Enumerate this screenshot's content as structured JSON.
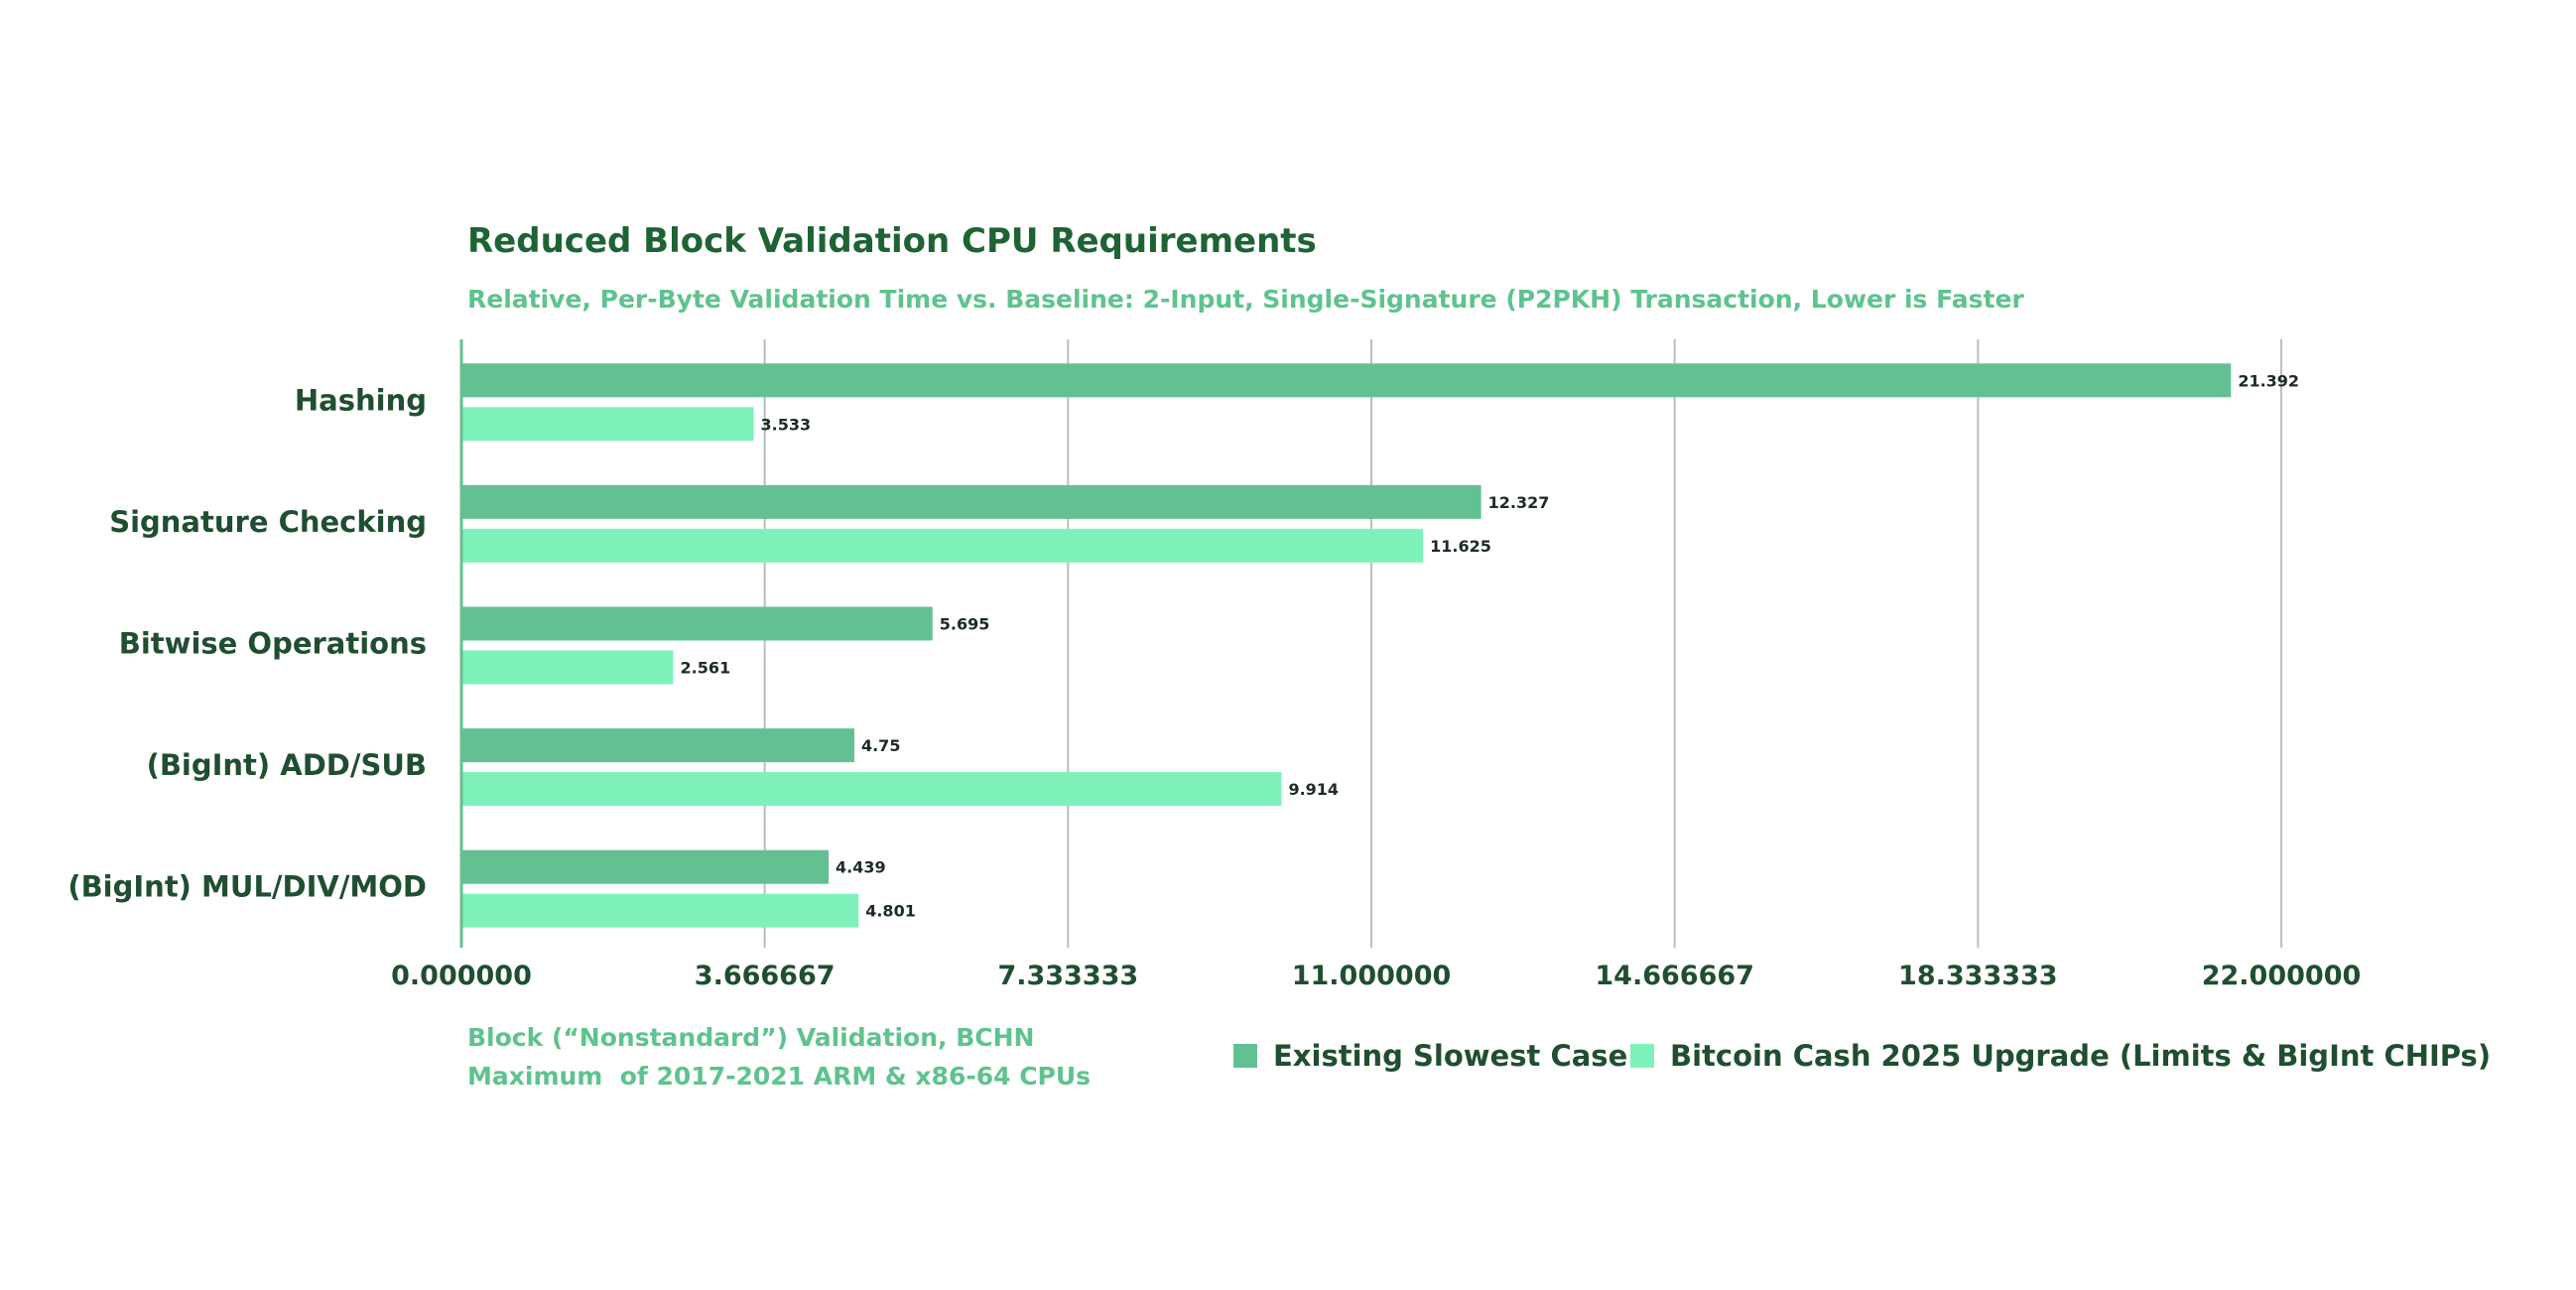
{
  "chart_data": {
    "type": "bar",
    "orientation": "horizontal",
    "title": "Reduced Block Validation CPU Requirements",
    "subtitle": "Relative, Per-Byte Validation Time vs. Baseline: 2-Input, Single-Signature (P2PKH) Transaction, Lower is Faster",
    "categories": [
      "Hashing",
      "Signature Checking",
      "Bitwise Operations",
      "(BigInt) ADD/SUB",
      "(BigInt) MUL/DIV/MOD"
    ],
    "series": [
      {
        "name": "Existing Slowest Case",
        "color": "#63c093",
        "values": [
          21.392,
          12.327,
          5.695,
          4.75,
          4.439
        ],
        "value_labels": [
          "21.392",
          "12.327",
          "5.695",
          "4.75",
          "4.439"
        ]
      },
      {
        "name": "Bitcoin Cash 2025 Upgrade (Limits & BigInt CHIPs)",
        "color": "#7ff2bb",
        "values": [
          3.533,
          11.625,
          2.561,
          9.914,
          4.801
        ],
        "value_labels": [
          "3.533",
          "11.625",
          "2.561",
          "9.914",
          "4.801"
        ]
      }
    ],
    "xlim": [
      0,
      22
    ],
    "ticks": [
      0,
      3.666667,
      7.333333,
      11,
      14.666667,
      18.333333,
      22
    ],
    "tick_labels": [
      "0.000000",
      "3.666667",
      "7.333333",
      "11.000000",
      "14.666667",
      "18.333333",
      "22.000000"
    ],
    "grid": true,
    "legend_position": "bottom-right",
    "notes": [
      "Block (“Nonstandard”) Validation, BCHN",
      "Maximum  of 2017-2021 ARM & x86-64 CPUs"
    ]
  }
}
